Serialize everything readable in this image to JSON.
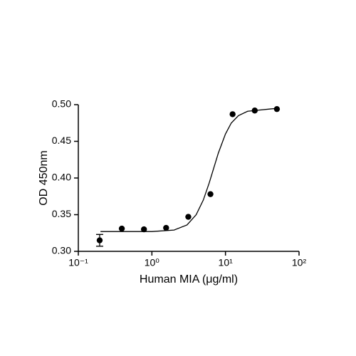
{
  "chart_data": {
    "type": "scatter",
    "x_label": "Human MIA (μg/ml)",
    "y_label": "OD 450nm",
    "x": [
      0.195,
      0.39,
      0.78,
      1.56,
      3.125,
      6.25,
      12.5,
      25,
      50
    ],
    "series": [
      {
        "color": "#000000",
        "values": [
          0.315,
          0.331,
          0.33,
          0.332,
          0.347,
          0.378,
          0.487,
          0.492,
          0.494
        ],
        "errors": [
          0.008,
          null,
          null,
          null,
          null,
          null,
          null,
          null,
          null
        ]
      }
    ],
    "fit": {
      "color": "#000000",
      "x": [
        0.2,
        1,
        2,
        3,
        4,
        5,
        6,
        7,
        8,
        10,
        12,
        15,
        20,
        50
      ],
      "values": [
        0.327,
        0.327,
        0.329,
        0.336,
        0.35,
        0.37,
        0.393,
        0.415,
        0.434,
        0.46,
        0.475,
        0.485,
        0.491,
        0.495
      ]
    },
    "xscale": "log",
    "xlim": [
      0.1,
      100
    ],
    "xticks": [
      {
        "value": 0.1,
        "label": "10⁻¹"
      },
      {
        "value": 1,
        "label": "10⁰"
      },
      {
        "value": 10,
        "label": "10¹"
      },
      {
        "value": 100,
        "label": "10²"
      }
    ],
    "ylim": [
      0.3,
      0.5
    ],
    "yticks": [
      {
        "value": 0.3,
        "label": "0.30"
      },
      0.35,
      {
        "value": 0.4,
        "label": "0.40"
      },
      0.45,
      {
        "value": 0.5,
        "label": "0.50"
      }
    ],
    "grid": false
  }
}
